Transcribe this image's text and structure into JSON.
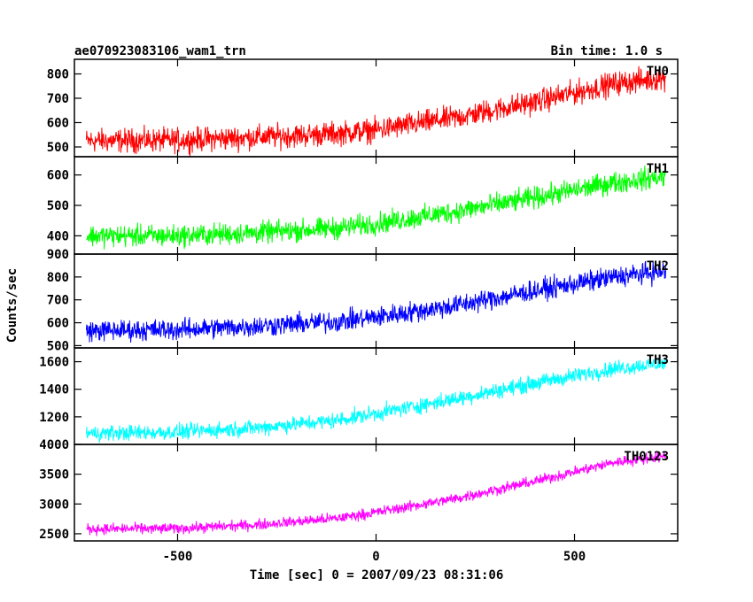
{
  "header": {
    "obs_id": "ae070923083106_wam1_trn",
    "bin_time": "Bin time: 1.0 s"
  },
  "chart_data": {
    "type": "line",
    "xlabel": "Time [sec] 0 = 2007/09/23 08:31:06",
    "ylabel": "Counts/sec",
    "xlim": [
      -760,
      760
    ],
    "x_ticks": [
      -500,
      0,
      500
    ],
    "x_range_data": [
      -730,
      730
    ],
    "grid": false,
    "panels": [
      {
        "name": "TH0",
        "color": "#ff0000",
        "ylim": [
          460,
          860
        ],
        "y_ticks": [
          500,
          600,
          700,
          800
        ],
        "trend": [
          [
            -730,
            525
          ],
          [
            -500,
            528
          ],
          [
            -300,
            540
          ],
          [
            -100,
            555
          ],
          [
            0,
            570
          ],
          [
            200,
            620
          ],
          [
            400,
            685
          ],
          [
            600,
            760
          ],
          [
            730,
            785
          ]
        ],
        "noise": 30
      },
      {
        "name": "TH1",
        "color": "#00ff00",
        "ylim": [
          340,
          660
        ],
        "y_ticks": [
          400,
          500,
          600
        ],
        "trend": [
          [
            -730,
            400
          ],
          [
            -500,
            400
          ],
          [
            -300,
            410
          ],
          [
            -100,
            425
          ],
          [
            0,
            440
          ],
          [
            200,
            480
          ],
          [
            400,
            525
          ],
          [
            600,
            575
          ],
          [
            730,
            595
          ]
        ],
        "noise": 22
      },
      {
        "name": "TH2",
        "color": "#0000ff",
        "ylim": [
          490,
          900
        ],
        "y_ticks": [
          500,
          600,
          700,
          800,
          900
        ],
        "trend": [
          [
            -730,
            565
          ],
          [
            -500,
            570
          ],
          [
            -300,
            585
          ],
          [
            -100,
            605
          ],
          [
            0,
            625
          ],
          [
            200,
            675
          ],
          [
            400,
            740
          ],
          [
            600,
            800
          ],
          [
            730,
            825
          ]
        ],
        "noise": 28
      },
      {
        "name": "TH3",
        "color": "#00ffff",
        "ylim": [
          1000,
          1700
        ],
        "y_ticks": [
          1200,
          1400,
          1600
        ],
        "trend": [
          [
            -730,
            1080
          ],
          [
            -500,
            1090
          ],
          [
            -300,
            1120
          ],
          [
            -100,
            1175
          ],
          [
            0,
            1225
          ],
          [
            200,
            1330
          ],
          [
            400,
            1445
          ],
          [
            600,
            1550
          ],
          [
            730,
            1590
          ]
        ],
        "noise": 35
      },
      {
        "name": "TH0123",
        "color": "#ff00ff",
        "ylim": [
          2380,
          4000
        ],
        "y_ticks": [
          2500,
          3000,
          3500,
          4000
        ],
        "trend": [
          [
            -730,
            2580
          ],
          [
            -500,
            2590
          ],
          [
            -300,
            2650
          ],
          [
            -100,
            2760
          ],
          [
            0,
            2860
          ],
          [
            200,
            3090
          ],
          [
            400,
            3380
          ],
          [
            600,
            3700
          ],
          [
            730,
            3800
          ]
        ],
        "noise": 55
      }
    ]
  }
}
